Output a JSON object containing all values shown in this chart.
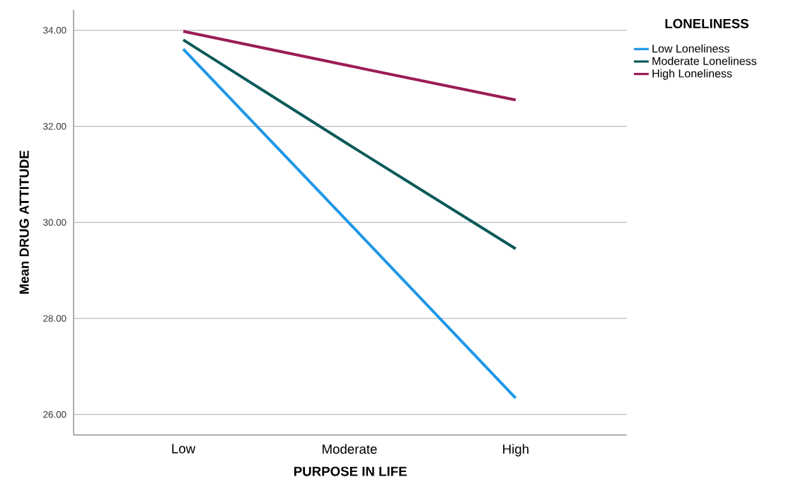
{
  "chart_data": {
    "type": "line",
    "xlabel": "PURPOSE IN LIFE",
    "ylabel": "Mean DRUG ATTITUDE",
    "legend_title": "LONELINESS",
    "categories": [
      "Low",
      "Moderate",
      "High"
    ],
    "series": [
      {
        "name": "Low Loneliness",
        "color": "#1f97e8",
        "values": [
          33.61,
          29.98,
          26.34
        ]
      },
      {
        "name": "Moderate Loneliness",
        "color": "#0c5a5a",
        "values": [
          33.8,
          31.61,
          29.45
        ]
      },
      {
        "name": "High Loneliness",
        "color": "#9b1c57",
        "values": [
          33.98,
          33.26,
          32.55
        ]
      }
    ],
    "ylim": [
      25.57,
      34.43
    ],
    "yticks": [
      {
        "value": 26,
        "label": "26.00"
      },
      {
        "value": 28,
        "label": "28.00"
      },
      {
        "value": 30,
        "label": "30.00"
      },
      {
        "value": 32,
        "label": "32.00"
      },
      {
        "value": 34,
        "label": "34.00"
      }
    ],
    "grid": "y",
    "legend": "top right",
    "marker": "none",
    "line_style": "solid"
  }
}
